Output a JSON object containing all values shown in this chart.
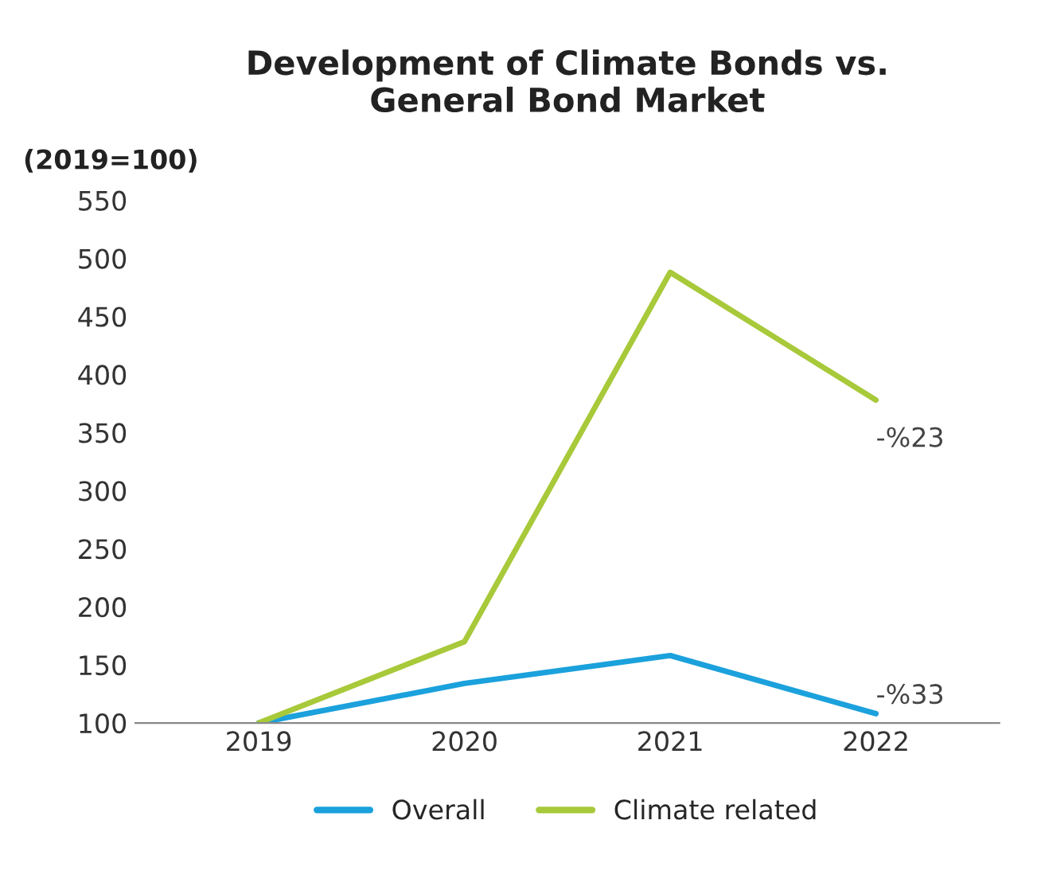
{
  "chart_data": {
    "type": "line",
    "title": "Development of Climate Bonds vs.\nGeneral Bond Market",
    "ylabel": "(2019=100)",
    "categories": [
      "2019",
      "2020",
      "2021",
      "2022"
    ],
    "series": [
      {
        "name": "Overall",
        "color": "#1ba1dc",
        "values": [
          100,
          134,
          158,
          108
        ]
      },
      {
        "name": "Climate related",
        "color": "#a8c93a",
        "values": [
          100,
          170,
          488,
          378
        ]
      }
    ],
    "ylim": [
      100,
      550
    ],
    "yticks": [
      100,
      150,
      200,
      250,
      300,
      350,
      400,
      450,
      500,
      550
    ],
    "annotations": [
      {
        "text": "-%23",
        "x": "2022",
        "y": 378
      },
      {
        "text": "-%33",
        "x": "2022",
        "y": 108
      }
    ],
    "grid": false,
    "legend": "bottom",
    "marker": "none",
    "line_style": "solid"
  }
}
